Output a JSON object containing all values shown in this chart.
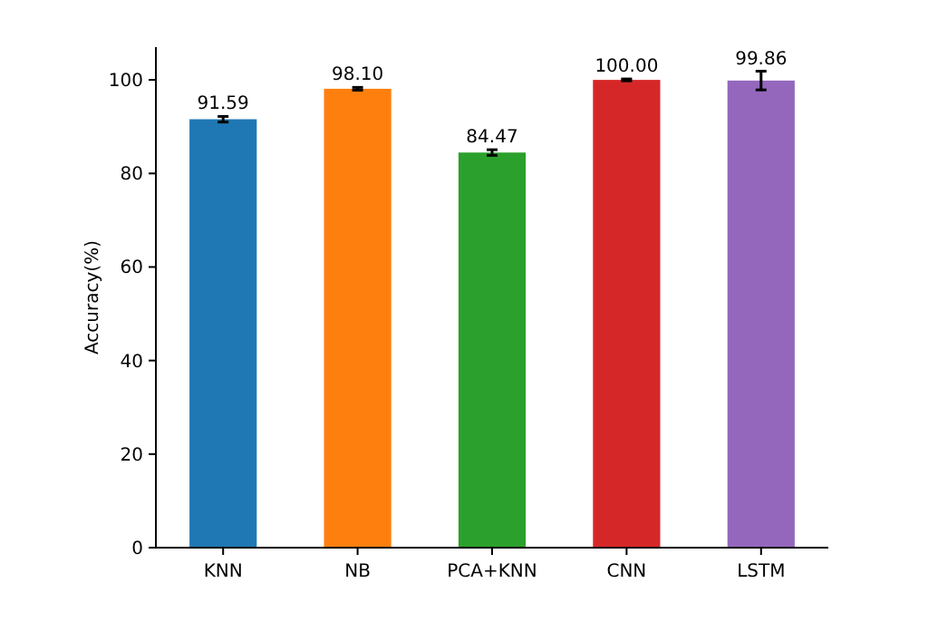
{
  "chart_data": {
    "type": "bar",
    "ylabel": "Accuracy(%)",
    "categories": [
      "KNN",
      "NB",
      "PCA+KNN",
      "CNN",
      "LSTM"
    ],
    "values": [
      91.59,
      98.1,
      84.47,
      100.0,
      99.86
    ],
    "colors": [
      "#1f77b4",
      "#ff7f0e",
      "#2ca02c",
      "#d62728",
      "#9467bd"
    ],
    "errors": [
      0.6,
      0.3,
      0.6,
      0.2,
      2
    ],
    "ylim": [
      0,
      107
    ],
    "yticks": [
      0,
      20,
      40,
      60,
      80,
      100
    ],
    "value_labels": [
      "91.59",
      "98.10",
      "84.47",
      "100.00",
      "99.86"
    ],
    "grid": false
  }
}
